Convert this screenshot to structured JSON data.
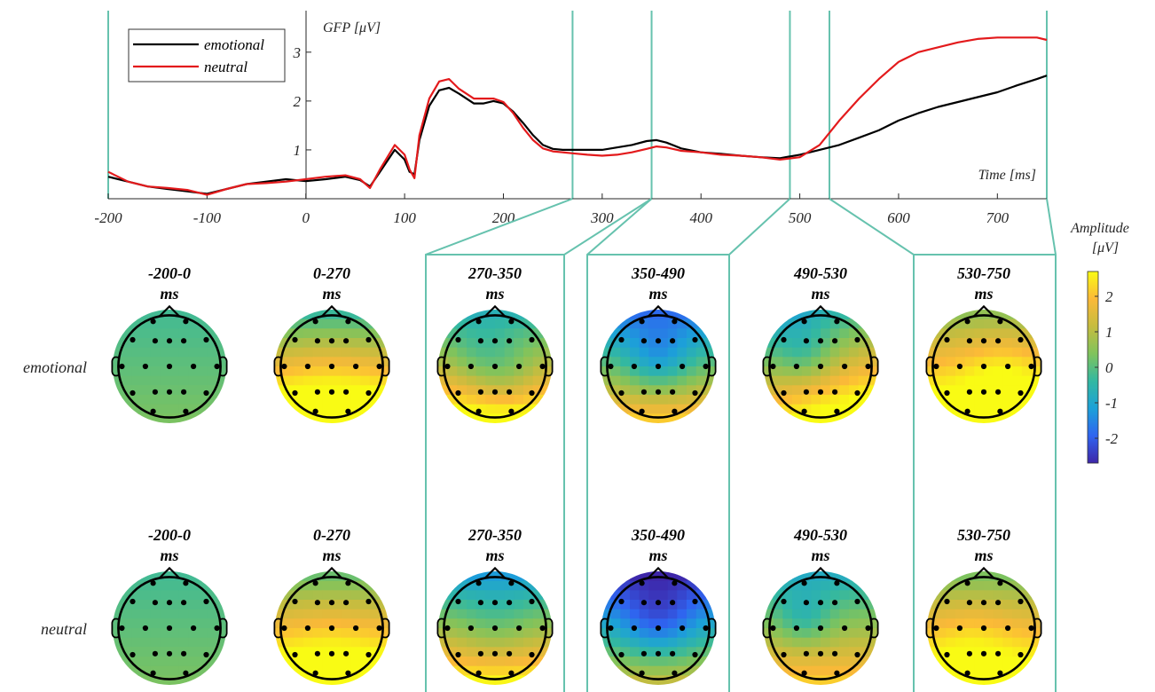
{
  "chart_data": [
    {
      "type": "line",
      "title": "",
      "ylabel": "GFP [μV]",
      "xlabel": "Time [ms]",
      "xlim": [
        -200,
        750
      ],
      "ylim": [
        0,
        3.85
      ],
      "grid": false,
      "legend_position": "top-left",
      "x_ticks": [
        "-200",
        "-100",
        "0",
        "100",
        "200",
        "300",
        "400",
        "500",
        "600",
        "700"
      ],
      "y_ticks": [
        "1",
        "2",
        "3"
      ],
      "window_boundaries_ms": [
        270,
        350,
        490,
        530,
        750
      ],
      "window_color": "#66c2ae",
      "series": [
        {
          "name": "emotional",
          "color": "#000000",
          "x": [
            -200,
            -180,
            -160,
            -140,
            -120,
            -100,
            -80,
            -60,
            -40,
            -20,
            0,
            20,
            40,
            55,
            65,
            75,
            90,
            100,
            105,
            110,
            115,
            125,
            135,
            145,
            155,
            170,
            180,
            190,
            200,
            210,
            220,
            230,
            240,
            250,
            260,
            270,
            285,
            300,
            315,
            330,
            345,
            355,
            365,
            380,
            400,
            420,
            440,
            460,
            480,
            500,
            520,
            540,
            560,
            580,
            600,
            620,
            640,
            660,
            680,
            700,
            720,
            740,
            750
          ],
          "y": [
            0.45,
            0.35,
            0.25,
            0.2,
            0.15,
            0.1,
            0.2,
            0.3,
            0.35,
            0.4,
            0.36,
            0.4,
            0.45,
            0.38,
            0.25,
            0.55,
            1.0,
            0.8,
            0.55,
            0.5,
            1.2,
            1.9,
            2.22,
            2.27,
            2.15,
            1.95,
            1.95,
            2.0,
            1.95,
            1.78,
            1.55,
            1.3,
            1.1,
            1.02,
            1.0,
            1.0,
            1.0,
            1.0,
            1.05,
            1.1,
            1.18,
            1.2,
            1.15,
            1.03,
            0.95,
            0.92,
            0.88,
            0.85,
            0.83,
            0.9,
            1.0,
            1.1,
            1.25,
            1.4,
            1.6,
            1.75,
            1.88,
            1.98,
            2.08,
            2.18,
            2.32,
            2.45,
            2.52
          ]
        },
        {
          "name": "neutral",
          "color": "#e31a1c",
          "x": [
            -200,
            -180,
            -160,
            -140,
            -120,
            -100,
            -80,
            -60,
            -40,
            -20,
            0,
            20,
            40,
            55,
            65,
            75,
            90,
            100,
            105,
            110,
            115,
            125,
            135,
            145,
            155,
            170,
            180,
            190,
            200,
            210,
            220,
            230,
            240,
            250,
            260,
            270,
            285,
            300,
            315,
            330,
            345,
            355,
            365,
            380,
            400,
            420,
            440,
            460,
            480,
            500,
            520,
            540,
            560,
            580,
            600,
            620,
            640,
            660,
            680,
            700,
            720,
            740,
            750
          ],
          "y": [
            0.55,
            0.35,
            0.25,
            0.22,
            0.18,
            0.08,
            0.2,
            0.3,
            0.32,
            0.35,
            0.4,
            0.45,
            0.48,
            0.4,
            0.22,
            0.6,
            1.1,
            0.9,
            0.6,
            0.42,
            1.3,
            2.05,
            2.4,
            2.45,
            2.25,
            2.05,
            2.05,
            2.05,
            1.98,
            1.75,
            1.45,
            1.2,
            1.03,
            0.97,
            0.95,
            0.93,
            0.9,
            0.88,
            0.9,
            0.95,
            1.02,
            1.07,
            1.05,
            0.98,
            0.95,
            0.9,
            0.88,
            0.85,
            0.8,
            0.85,
            1.1,
            1.6,
            2.05,
            2.45,
            2.8,
            3.0,
            3.1,
            3.2,
            3.27,
            3.3,
            3.3,
            3.3,
            3.25
          ]
        }
      ]
    },
    {
      "type": "heatmap",
      "title": "",
      "colorbar_title": [
        "Amplitude",
        "[μV]"
      ],
      "colorbar_range": [
        -2.7,
        2.7
      ],
      "colorbar_ticks": [
        "2",
        "1",
        "0",
        "-1",
        "-2"
      ],
      "colormap": [
        "#3e26a8",
        "#2f64f0",
        "#1ca1d8",
        "#33b8a1",
        "#80c35c",
        "#c6bc3f",
        "#fbb938",
        "#f9fb14"
      ],
      "condition_labels": [
        "emotional",
        "neutral"
      ],
      "windows": [
        {
          "label": "-200-0",
          "unit": "ms",
          "boxed": false
        },
        {
          "label": "0-270",
          "unit": "ms",
          "boxed": false
        },
        {
          "label": "270-350",
          "unit": "ms",
          "boxed": true
        },
        {
          "label": "350-490",
          "unit": "ms",
          "boxed": true
        },
        {
          "label": "490-530",
          "unit": "ms",
          "boxed": false
        },
        {
          "label": "530-750",
          "unit": "ms",
          "boxed": true
        }
      ]
    }
  ]
}
